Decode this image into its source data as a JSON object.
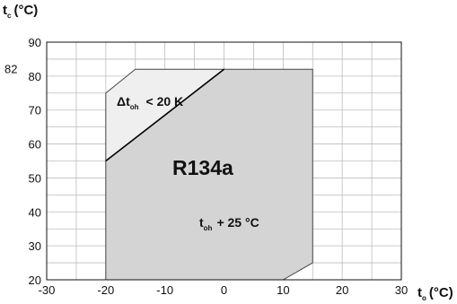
{
  "chart_data": {
    "type": "area",
    "title": "",
    "refrigerant_label": "R134a",
    "x_axis": {
      "symbol": "t",
      "subscript": "o",
      "unit": "(°C)",
      "min": -30,
      "max": 30,
      "ticks": [
        -30,
        -20,
        -10,
        0,
        10,
        20,
        30
      ],
      "tick_labels": [
        "-30",
        "-20",
        "-10",
        "0",
        "10",
        "20",
        "30"
      ]
    },
    "y_axis": {
      "symbol": "t",
      "subscript": "c",
      "unit": "(°C)",
      "min": 20,
      "max": 90,
      "ticks": [
        20,
        30,
        40,
        50,
        60,
        70,
        80,
        90
      ],
      "tick_labels": [
        "20",
        "30",
        "40",
        "50",
        "60",
        "70",
        "80",
        "90"
      ],
      "extra_tick": 82,
      "extra_tick_label": "82"
    },
    "grid": true,
    "series": [
      {
        "name": "t_oh + 25 °C",
        "fill": "#d4d4d4",
        "points": [
          [
            -20,
            20
          ],
          [
            -20,
            55
          ],
          [
            0,
            82
          ],
          [
            15,
            82
          ],
          [
            15,
            25
          ],
          [
            10,
            20
          ]
        ]
      },
      {
        "name": "Δt_oh < 20 K",
        "fill": "#efefef",
        "points": [
          [
            -20,
            55
          ],
          [
            -20,
            75
          ],
          [
            -15,
            82
          ],
          [
            0,
            82
          ]
        ]
      }
    ],
    "annotations": {
      "upper_symbol": "Δt",
      "upper_sub": "oh",
      "upper_text": "< 20 K",
      "lower_symbol": "t",
      "lower_sub": "oh",
      "lower_text": "+ 25 °C"
    }
  }
}
